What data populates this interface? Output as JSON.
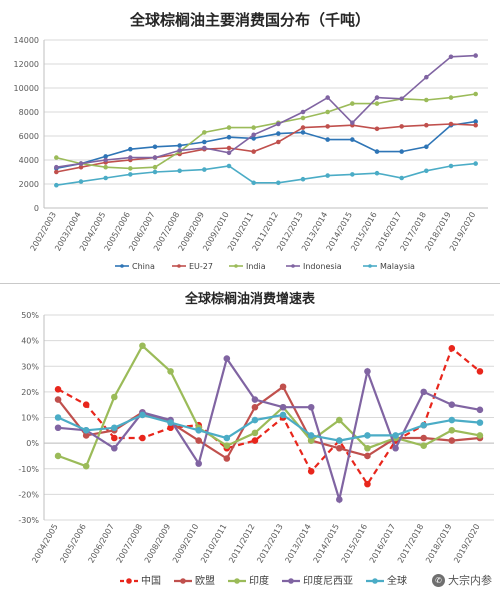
{
  "chart_data": [
    {
      "type": "line",
      "title": "全球棕榈油主要消费国分布（千吨）",
      "categories": [
        "2002/2003",
        "2003/2004",
        "2004/2005",
        "2005/2006",
        "2006/2007",
        "2007/2008",
        "2008/2009",
        "2009/2010",
        "2010/2011",
        "2011/2012",
        "2012/2013",
        "2013/2014",
        "2014/2015",
        "2015/2016",
        "2016/2017",
        "2017/2018",
        "2018/2019",
        "2019/2020"
      ],
      "ylim": [
        0,
        14000
      ],
      "yticks": [
        0,
        2000,
        4000,
        6000,
        8000,
        10000,
        12000,
        14000
      ],
      "grid": true,
      "legend_position": "bottom",
      "series": [
        {
          "name": "China",
          "color": "#2e75b6",
          "values": [
            3300,
            3700,
            4300,
            4900,
            5100,
            5200,
            5500,
            5900,
            5800,
            6200,
            6300,
            5700,
            5700,
            4700,
            4700,
            5100,
            6900,
            7200
          ]
        },
        {
          "name": "EU-27",
          "color": "#c0504d",
          "values": [
            3000,
            3400,
            3800,
            4000,
            4200,
            4500,
            4900,
            5000,
            4700,
            5500,
            6700,
            6800,
            6900,
            6600,
            6800,
            6900,
            7000,
            6900
          ]
        },
        {
          "name": "India",
          "color": "#9bbb59",
          "values": [
            4200,
            3700,
            3400,
            3300,
            3400,
            4700,
            6300,
            6700,
            6700,
            7100,
            7500,
            8000,
            8700,
            8700,
            9100,
            9000,
            9200,
            9500
          ]
        },
        {
          "name": "Indonesia",
          "color": "#8064a2",
          "values": [
            3400,
            3700,
            4000,
            4200,
            4200,
            4800,
            5000,
            4600,
            6100,
            7000,
            8000,
            9200,
            7100,
            9200,
            9100,
            10900,
            12600,
            12700
          ]
        },
        {
          "name": "Malaysia",
          "color": "#4bacc6",
          "values": [
            1900,
            2200,
            2500,
            2800,
            3000,
            3100,
            3200,
            3500,
            2100,
            2100,
            2400,
            2700,
            2800,
            2900,
            2500,
            3100,
            3500,
            3700
          ]
        }
      ]
    },
    {
      "type": "line",
      "title": "全球棕榈油消费增速表",
      "categories": [
        "2004/2005",
        "2005/2006",
        "2006/2007",
        "2007/2008",
        "2008/2009",
        "2009/2010",
        "2010/2011",
        "2011/2012",
        "2012/2013",
        "2013/2014",
        "2014/2015",
        "2015/2016",
        "2016/2017",
        "2017/2018",
        "2018/2019",
        "2019/2020"
      ],
      "ylim": [
        -30,
        50
      ],
      "yticks": [
        -30,
        -20,
        -10,
        0,
        10,
        20,
        30,
        40,
        50
      ],
      "tick_labels": [
        "-30%",
        "-20%",
        "-10%",
        "0%",
        "10%",
        "20%",
        "30%",
        "40%",
        "50%"
      ],
      "grid": true,
      "legend_position": "bottom",
      "series": [
        {
          "name": "中国",
          "color": "#e8261c",
          "dashed": true,
          "values": [
            21,
            15,
            2,
            2,
            6,
            7,
            -2,
            1,
            10,
            -11,
            1,
            -16,
            1,
            7,
            37,
            28
          ]
        },
        {
          "name": "欧盟",
          "color": "#c0504d",
          "values": [
            17,
            3,
            5,
            12,
            8,
            1,
            -6,
            14,
            22,
            1,
            -2,
            -5,
            2,
            2,
            1,
            2
          ]
        },
        {
          "name": "印度",
          "color": "#9bbb59",
          "values": [
            -5,
            -9,
            18,
            38,
            28,
            6,
            -1,
            4,
            14,
            1,
            9,
            -2,
            2,
            -1,
            5,
            3
          ]
        },
        {
          "name": "印度尼西亚",
          "color": "#8064a2",
          "values": [
            6,
            5,
            -2,
            12,
            9,
            -8,
            33,
            17,
            14,
            14,
            -22,
            28,
            -2,
            20,
            15,
            13
          ]
        },
        {
          "name": "全球",
          "color": "#4bacc6",
          "values": [
            10,
            5,
            6,
            11,
            8,
            5,
            2,
            9,
            11,
            3,
            1,
            3,
            3,
            7,
            9,
            8
          ]
        }
      ]
    }
  ],
  "watermark": {
    "text": "大宗内参",
    "icon": "wechat-icon"
  }
}
